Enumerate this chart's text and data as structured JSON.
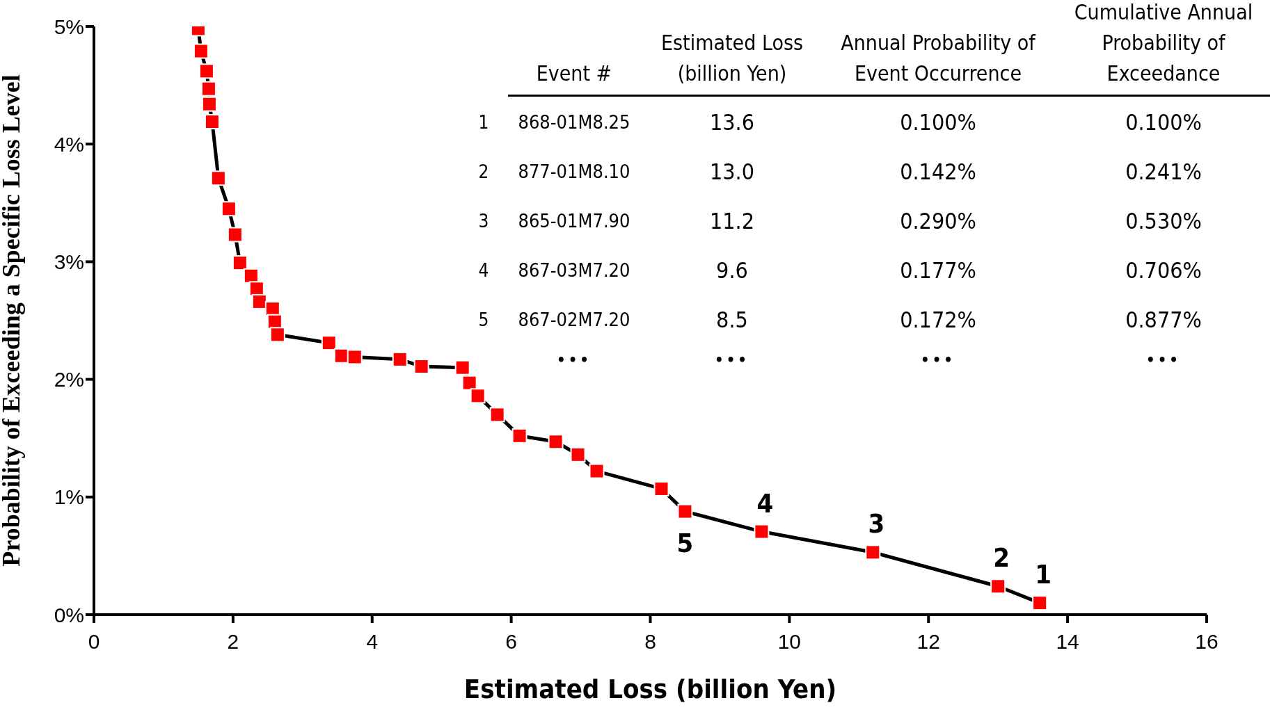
{
  "chart_data": {
    "type": "line",
    "xlabel": "Estimated Loss (billion Yen)",
    "ylabel": "Probability of Exceeding a Specific Loss Level",
    "x": [
      1.5,
      1.54,
      1.62,
      1.65,
      1.66,
      1.7,
      1.79,
      1.94,
      2.03,
      2.1,
      2.26,
      2.34,
      2.38,
      2.57,
      2.6,
      2.64,
      3.38,
      3.56,
      3.75,
      4.4,
      4.71,
      5.3,
      5.4,
      5.52,
      5.8,
      6.12,
      6.64,
      6.96,
      7.23,
      8.16,
      8.5,
      9.6,
      11.2,
      13.0,
      13.6
    ],
    "series": [
      {
        "color": "#ff0000",
        "values": [
          4.98,
          4.79,
          4.62,
          4.47,
          4.34,
          4.19,
          3.71,
          3.45,
          3.23,
          2.99,
          2.88,
          2.77,
          2.66,
          2.6,
          2.49,
          2.38,
          2.31,
          2.2,
          2.19,
          2.17,
          2.11,
          2.1,
          1.97,
          1.86,
          1.7,
          1.52,
          1.47,
          1.36,
          1.22,
          1.07,
          0.877,
          0.706,
          0.53,
          0.241,
          0.1
        ]
      }
    ],
    "marker": "square",
    "line_style": "solid",
    "xlim": [
      0,
      16
    ],
    "xticks": [
      0,
      2,
      4,
      6,
      8,
      10,
      12,
      14,
      16
    ],
    "ylim": [
      0,
      5
    ],
    "yticks": [
      {
        "value": 0,
        "label": "0%"
      },
      {
        "value": 1,
        "label": "1%"
      },
      {
        "value": 2,
        "label": "2%"
      },
      {
        "value": 3,
        "label": "3%"
      },
      {
        "value": 4,
        "label": "4%"
      },
      {
        "value": 5,
        "label": "5%"
      }
    ],
    "annotations": [
      "Event #",
      "Estimated Loss (billion Yen)",
      "Annual Probability of Event Occurrence",
      "Cumulative Annual Probability of Exceedance",
      "1",
      "868-01M8.25",
      "13.6",
      "0.100%",
      "0.100%",
      "2",
      "877-01M8.10",
      "13.0",
      "0.142%",
      "0.241%",
      "3",
      "865-01M7.90",
      "11.2",
      "0.290%",
      "0.530%",
      "4",
      "867-03M7.20",
      "9.6",
      "0.177%",
      "0.706%",
      "5",
      "867-02M7.20",
      "8.5",
      "0.172%",
      "0.877%",
      "•••",
      "•••",
      "•••",
      "•••",
      {
        "text": "1",
        "x": 13.6,
        "y": 0.1
      },
      {
        "text": "2",
        "x": 13.0,
        "y": 0.241
      },
      {
        "text": "3",
        "x": 11.2,
        "y": 0.53
      },
      {
        "text": "4",
        "x": 9.6,
        "y": 0.706
      },
      {
        "text": "5",
        "x": 8.5,
        "y": 0.877
      }
    ]
  }
}
